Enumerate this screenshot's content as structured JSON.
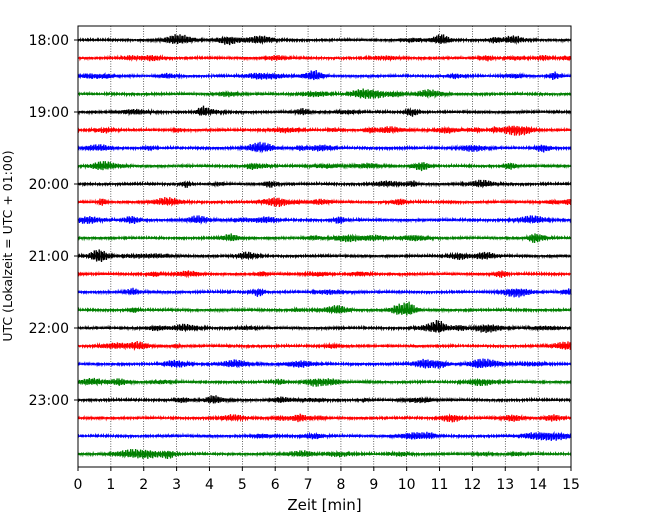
{
  "chart_data": {
    "type": "line",
    "title": "",
    "xlabel": "Zeit  [min]",
    "ylabel": "UTC (Lokalzeit = UTC + 01:00)",
    "xlim": [
      0,
      15
    ],
    "x_ticks": [
      "0",
      "1",
      "2",
      "3",
      "4",
      "5",
      "6",
      "7",
      "8",
      "9",
      "10",
      "11",
      "12",
      "13",
      "14",
      "15"
    ],
    "y_ticks": [
      "18:00",
      "19:00",
      "20:00",
      "21:00",
      "22:00",
      "23:00"
    ],
    "grid": "vertical dotted at each minute",
    "trace_interval_min": 15,
    "trace_count": 24,
    "trace_start": "18:00",
    "trace_colors": [
      "#000000",
      "#ff0000",
      "#0000ff",
      "#007f00"
    ],
    "legend": "none"
  }
}
